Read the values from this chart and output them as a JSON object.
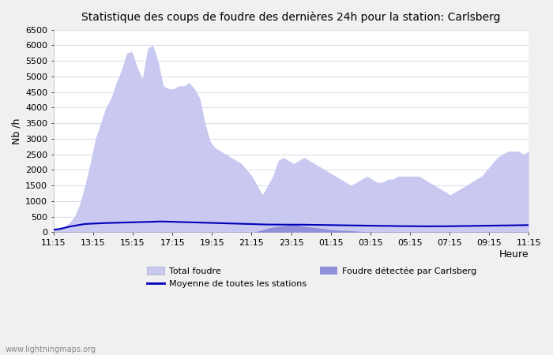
{
  "title": "Statistique des coups de foudre des dernières 24h pour la station: Carlsberg",
  "ylabel": "Nb /h",
  "xlabel": "Heure",
  "watermark": "www.lightningmaps.org",
  "ylim": [
    0,
    6500
  ],
  "yticks": [
    0,
    500,
    1000,
    1500,
    2000,
    2500,
    3000,
    3500,
    4000,
    4500,
    5000,
    5500,
    6000,
    6500
  ],
  "xtick_labels": [
    "11:15",
    "13:15",
    "15:15",
    "17:15",
    "19:15",
    "21:15",
    "23:15",
    "01:15",
    "03:15",
    "05:15",
    "07:15",
    "09:15",
    "11:15"
  ],
  "color_total": "#c8c8f0",
  "color_carlsberg": "#9090d8",
  "color_moyenne": "#0000bb",
  "bg_color": "#ffffff",
  "grid_color": "#ddddee",
  "legend_total": "Total foudre",
  "legend_moyenne": "Moyenne de toutes les stations",
  "legend_carlsberg": "Foudre détectée par Carlsberg",
  "total_foudre": [
    100,
    120,
    180,
    300,
    500,
    900,
    1500,
    2200,
    3000,
    3500,
    4000,
    4300,
    4800,
    5200,
    5750,
    5800,
    5300,
    4900,
    5900,
    6000,
    5500,
    4700,
    4600,
    4600,
    4700,
    4700,
    4800,
    4600,
    4300,
    3500,
    2900,
    2700,
    2600,
    2500,
    2400,
    2300,
    2200,
    2000,
    1800,
    1500,
    1200,
    1500,
    1800,
    2300,
    2400,
    2300,
    2200,
    2300,
    2400,
    2300,
    2200,
    2100,
    2000,
    1900,
    1800,
    1700,
    1600,
    1500,
    1600,
    1700,
    1800,
    1700,
    1600,
    1600,
    1700,
    1700,
    1800,
    1800,
    1800,
    1800,
    1800,
    1700,
    1600,
    1500,
    1400,
    1300,
    1200,
    1300,
    1400,
    1500,
    1600,
    1700,
    1800,
    2000,
    2200,
    2400,
    2500,
    2600,
    2600,
    2600,
    2500,
    2600
  ],
  "carlsberg_foudre": [
    5,
    5,
    5,
    5,
    5,
    5,
    5,
    5,
    5,
    5,
    5,
    5,
    5,
    5,
    5,
    5,
    5,
    5,
    5,
    5,
    5,
    5,
    5,
    5,
    5,
    5,
    5,
    5,
    5,
    5,
    5,
    5,
    5,
    5,
    5,
    5,
    5,
    5,
    5,
    50,
    100,
    150,
    180,
    200,
    220,
    250,
    230,
    200,
    180,
    160,
    140,
    120,
    100,
    80,
    70,
    60,
    50,
    40,
    30,
    20,
    15,
    10,
    10,
    10,
    10,
    10,
    10,
    10,
    10,
    10,
    10,
    10,
    10,
    10,
    10,
    10,
    10,
    10,
    10,
    10,
    10,
    10,
    10,
    10,
    10,
    10,
    10,
    10,
    10,
    10,
    10
  ],
  "moyenne_foudre": [
    80,
    100,
    140,
    180,
    210,
    240,
    265,
    275,
    280,
    290,
    295,
    300,
    305,
    310,
    315,
    320,
    325,
    330,
    335,
    340,
    345,
    345,
    340,
    335,
    330,
    325,
    320,
    315,
    310,
    305,
    300,
    295,
    290,
    285,
    280,
    275,
    270,
    265,
    260,
    255,
    250,
    248,
    245,
    245,
    245,
    245,
    244,
    243,
    242,
    240,
    238,
    235,
    232,
    230,
    228,
    225,
    222,
    220,
    218,
    215,
    213,
    210,
    208,
    205,
    203,
    200,
    198,
    196,
    194,
    192,
    190,
    190,
    190,
    190,
    190,
    192,
    194,
    196,
    198,
    200,
    202,
    205,
    208,
    210,
    213,
    215,
    218,
    220,
    222,
    225,
    228,
    230
  ]
}
